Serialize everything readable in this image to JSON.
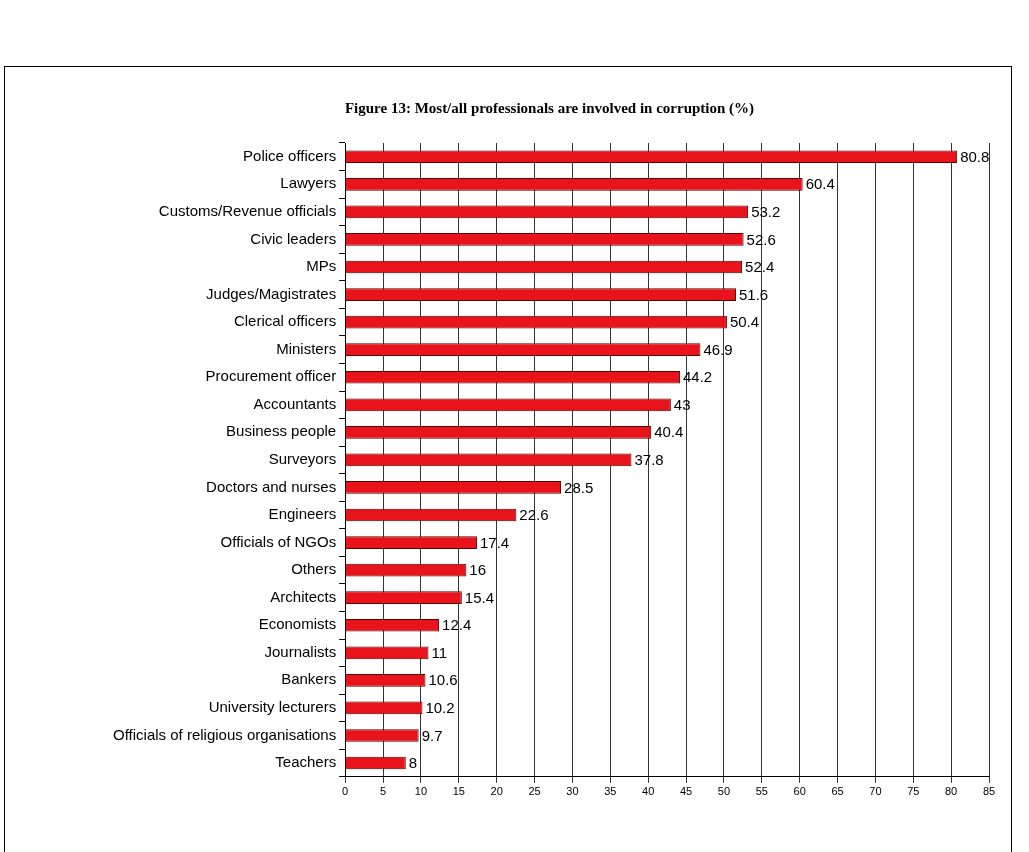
{
  "chart_data": {
    "type": "bar",
    "orientation": "horizontal",
    "title": "Figure 13: Most/all professionals are involved in corruption (%)",
    "categories": [
      "Police officers",
      "Lawyers",
      "Customs/Revenue officials",
      "Civic leaders",
      "MPs",
      "Judges/Magistrates",
      "Clerical officers",
      "Ministers",
      "Procurement officer",
      "Accountants",
      "Business people",
      "Surveyors",
      "Doctors and nurses",
      "Engineers",
      "Officials of NGOs",
      "Others",
      "Architects",
      "Economists",
      "Journalists",
      "Bankers",
      "University lecturers",
      "Officials of religious organisations",
      "Teachers"
    ],
    "values": [
      80.8,
      60.4,
      53.2,
      52.6,
      52.4,
      51.6,
      50.4,
      46.9,
      44.2,
      43,
      40.4,
      37.8,
      28.5,
      22.6,
      17.4,
      16,
      15.4,
      12.4,
      11,
      10.6,
      10.2,
      9.7,
      8
    ],
    "color": "#e8131b",
    "xlim": [
      0,
      85
    ],
    "xticks": [
      0,
      5,
      10,
      15,
      20,
      25,
      30,
      35,
      40,
      45,
      50,
      55,
      60,
      65,
      70,
      75,
      80,
      85
    ],
    "grid": "x",
    "legend": false,
    "data_labels": true
  }
}
